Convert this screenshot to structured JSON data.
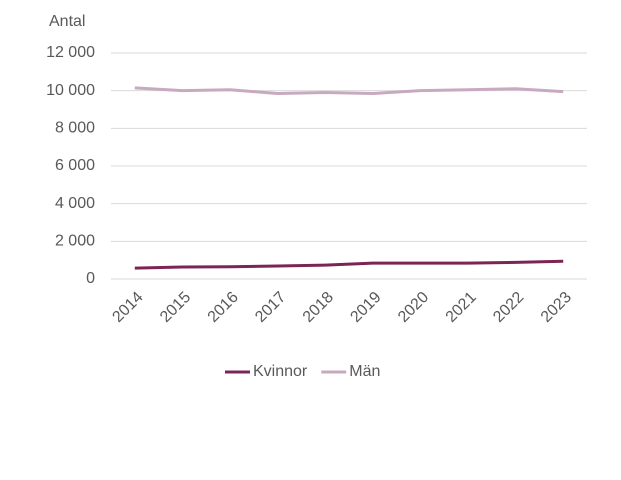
{
  "chart_data": {
    "type": "line",
    "y_label": "Antal",
    "categories": [
      "2014",
      "2015",
      "2016",
      "2017",
      "2018",
      "2019",
      "2020",
      "2021",
      "2022",
      "2023"
    ],
    "series": [
      {
        "name": "Kvinnor",
        "color": "#7b2456",
        "values": [
          580,
          640,
          650,
          690,
          740,
          840,
          840,
          840,
          880,
          940
        ]
      },
      {
        "name": "Män",
        "color": "#c9a9bf",
        "values": [
          10150,
          10000,
          10050,
          9850,
          9900,
          9850,
          10000,
          10050,
          10100,
          9950
        ]
      }
    ],
    "ylim": [
      0,
      12000
    ],
    "yticks": [
      0,
      {
        "value": 2000,
        "label": "2 000"
      },
      {
        "value": 4000,
        "label": "4 000"
      },
      {
        "value": 6000,
        "label": "6 000"
      },
      {
        "value": 8000,
        "label": "8 000"
      },
      {
        "value": 10000,
        "label": "10 000"
      },
      {
        "value": 12000,
        "label": "12 000"
      }
    ],
    "grid": true,
    "legend": "bottom"
  }
}
